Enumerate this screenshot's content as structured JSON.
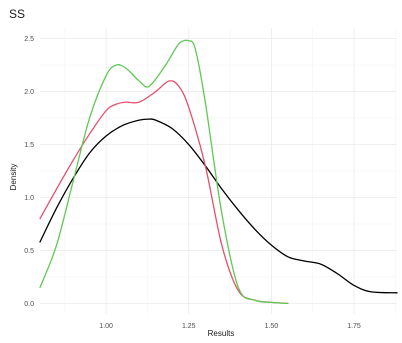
{
  "chart_data": {
    "type": "line",
    "title": "SS",
    "xlabel": "Results",
    "ylabel": "Density",
    "xlim": [
      0.8,
      1.88
    ],
    "ylim": [
      0,
      2.5
    ],
    "x_ticks": [
      1.0,
      1.25,
      1.5,
      1.75
    ],
    "x_tick_labels": [
      "1.00",
      "1.25",
      "1.50",
      "1.75"
    ],
    "y_ticks": [
      0.0,
      0.5,
      1.0,
      1.5,
      2.0,
      2.5
    ],
    "y_tick_labels": [
      "0.0",
      "0.5",
      "1.0",
      "1.5",
      "2.0",
      "2.5"
    ],
    "grid": true,
    "legend": "none",
    "series": [
      {
        "color": "#000000",
        "x": [
          0.8,
          0.85,
          0.9,
          0.95,
          1.0,
          1.05,
          1.1,
          1.13,
          1.15,
          1.2,
          1.25,
          1.3,
          1.35,
          1.4,
          1.45,
          1.5,
          1.55,
          1.6,
          1.65,
          1.7,
          1.75,
          1.8,
          1.88
        ],
        "y": [
          0.58,
          0.9,
          1.18,
          1.42,
          1.58,
          1.68,
          1.73,
          1.74,
          1.73,
          1.65,
          1.5,
          1.3,
          1.08,
          0.88,
          0.7,
          0.55,
          0.44,
          0.4,
          0.37,
          0.28,
          0.17,
          0.11,
          0.1
        ]
      },
      {
        "color": "#e3506e",
        "x": [
          0.8,
          0.85,
          0.9,
          0.95,
          1.0,
          1.03,
          1.06,
          1.1,
          1.15,
          1.19,
          1.22,
          1.25,
          1.3,
          1.35,
          1.4,
          1.45,
          1.5,
          1.55
        ],
        "y": [
          0.8,
          1.08,
          1.35,
          1.6,
          1.82,
          1.88,
          1.9,
          1.9,
          2.0,
          2.1,
          2.05,
          1.85,
          1.3,
          0.55,
          0.12,
          0.03,
          0.01,
          0.0
        ]
      },
      {
        "color": "#5fc954",
        "x": [
          0.8,
          0.85,
          0.9,
          0.95,
          1.0,
          1.03,
          1.06,
          1.1,
          1.13,
          1.18,
          1.22,
          1.25,
          1.27,
          1.3,
          1.35,
          1.4,
          1.45,
          1.5,
          1.55
        ],
        "y": [
          0.15,
          0.55,
          1.15,
          1.75,
          2.15,
          2.25,
          2.22,
          2.1,
          2.05,
          2.25,
          2.45,
          2.48,
          2.4,
          1.9,
          0.85,
          0.15,
          0.03,
          0.01,
          0.0
        ]
      }
    ]
  }
}
